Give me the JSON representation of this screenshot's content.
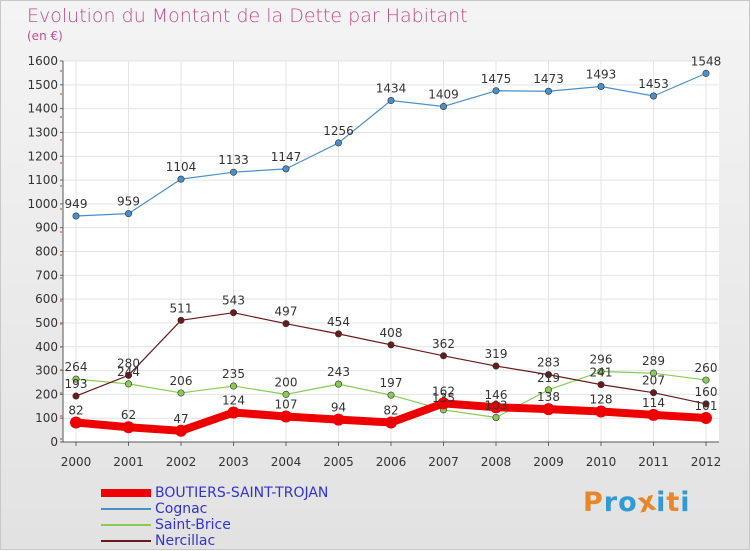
{
  "title": "Evolution du Montant de la Dette par Habitant",
  "subtitle": "(en €)",
  "logo": {
    "text": "Proxiti",
    "colors": [
      "#e8862a",
      "#2f9ad4",
      "#2f9ad4",
      "#e8862a",
      "#2f9ad4",
      "#e8862a",
      "#2f9ad4"
    ]
  },
  "chart_data": {
    "type": "line",
    "x": [
      "2000",
      "2001",
      "2002",
      "2003",
      "2004",
      "2005",
      "2006",
      "2007",
      "2008",
      "2009",
      "2010",
      "2011",
      "2012"
    ],
    "ylim": [
      0,
      1600
    ],
    "yticks": [
      0,
      100,
      200,
      300,
      400,
      500,
      600,
      700,
      800,
      900,
      1000,
      1100,
      1200,
      1300,
      1400,
      1500,
      1600
    ],
    "grid": true,
    "legend_position": "bottom-left",
    "series": [
      {
        "name": "Cognac",
        "color": "#4a90c8",
        "values": [
          949,
          959,
          1104,
          1133,
          1147,
          1256,
          1434,
          1409,
          1475,
          1473,
          1493,
          1453,
          1548
        ]
      },
      {
        "name": "Saint-Brice",
        "color": "#88cc55",
        "values": [
          264,
          244,
          206,
          235,
          200,
          243,
          197,
          135,
          103,
          219,
          296,
          289,
          260
        ]
      },
      {
        "name": "Nercillac",
        "color": "#6a1a1a",
        "values": [
          193,
          280,
          511,
          543,
          497,
          454,
          408,
          362,
          319,
          283,
          241,
          207,
          160
        ]
      },
      {
        "name": "BOUTIERS-SAINT-TROJAN",
        "color": "#ee0000",
        "values": [
          82,
          62,
          47,
          124,
          107,
          94,
          82,
          162,
          146,
          138,
          128,
          114,
          101
        ]
      }
    ],
    "legend_order": [
      "BOUTIERS-SAINT-TROJAN",
      "Cognac",
      "Saint-Brice",
      "Nercillac"
    ],
    "legend_label_color": "#3333cc"
  }
}
